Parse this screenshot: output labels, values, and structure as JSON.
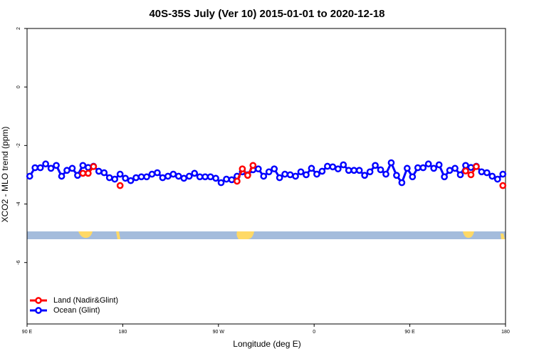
{
  "chart_data": {
    "type": "line",
    "title": "40S-35S July (Ver 10)   2015-01-01 to 2020-12-18",
    "x_label": "Longitude (deg E)",
    "y_label": "XCO2 - MLO trend (ppm)",
    "xlim": [
      90,
      540
    ],
    "ylim": [
      -8.1,
      2
    ],
    "xticks": [
      {
        "value": 90,
        "label": "90 E"
      },
      {
        "value": 180,
        "label": "180"
      },
      {
        "value": 270,
        "label": "90 W"
      },
      {
        "value": 360,
        "label": "0"
      },
      {
        "value": 450,
        "label": "90 E"
      },
      {
        "value": 540,
        "label": "180"
      }
    ],
    "yticks": [
      2,
      0,
      -2,
      -4,
      -6
    ],
    "legend": "bottom-left",
    "series": [
      {
        "name": "Land (Nadir&Glint)",
        "color": "#ff0000",
        "x": [
          142.5,
          147.5,
          152.5,
          177.5,
          287.5,
          292.5,
          297.5,
          302.5,
          502.5,
          507.5,
          512.5,
          537.5
        ],
        "values": [
          -2.95,
          -2.95,
          -2.72,
          -3.37,
          -3.22,
          -2.8,
          -3.02,
          -2.68,
          -2.87,
          -3.0,
          -2.72,
          -3.37
        ]
      },
      {
        "name": "Ocean (Glint)",
        "color": "#0000ff",
        "x": [
          92.5,
          97.5,
          102.5,
          107.5,
          112.5,
          117.5,
          122.5,
          127.5,
          132.5,
          137.5,
          142.5,
          147.5,
          152.5,
          157.5,
          162.5,
          167.5,
          172.5,
          177.5,
          182.5,
          187.5,
          192.5,
          197.5,
          202.5,
          207.5,
          212.5,
          217.5,
          222.5,
          227.5,
          232.5,
          237.5,
          242.5,
          247.5,
          252.5,
          257.5,
          262.5,
          267.5,
          272.5,
          277.5,
          282.5,
          287.5,
          292.5,
          297.5,
          302.5,
          307.5,
          312.5,
          317.5,
          322.5,
          327.5,
          332.5,
          337.5,
          342.5,
          347.5,
          352.5,
          357.5,
          362.5,
          367.5,
          372.5,
          377.5,
          382.5,
          387.5,
          392.5,
          397.5,
          402.5,
          407.5,
          412.5,
          417.5,
          422.5,
          427.5,
          432.5,
          437.5,
          442.5,
          447.5,
          452.5,
          457.5,
          462.5,
          467.5,
          472.5,
          477.5,
          482.5,
          487.5,
          492.5,
          497.5,
          502.5,
          507.5,
          512.5,
          517.5,
          522.5,
          527.5,
          532.5,
          537.5
        ],
        "values": [
          -3.05,
          -2.76,
          -2.76,
          -2.63,
          -2.78,
          -2.68,
          -3.05,
          -2.85,
          -2.78,
          -3.02,
          -2.68,
          -2.75,
          -2.71,
          -2.88,
          -2.93,
          -3.1,
          -3.15,
          -2.98,
          -3.12,
          -3.2,
          -3.1,
          -3.07,
          -3.07,
          -2.98,
          -2.93,
          -3.1,
          -3.05,
          -2.98,
          -3.05,
          -3.12,
          -3.05,
          -2.95,
          -3.07,
          -3.07,
          -3.07,
          -3.12,
          -3.27,
          -3.15,
          -3.17,
          -3.05,
          -2.9,
          -3.0,
          -2.83,
          -2.8,
          -3.05,
          -2.9,
          -2.8,
          -3.1,
          -2.98,
          -3.0,
          -3.05,
          -2.9,
          -3.0,
          -2.78,
          -2.98,
          -2.88,
          -2.71,
          -2.73,
          -2.8,
          -2.66,
          -2.85,
          -2.85,
          -2.85,
          -3.02,
          -2.9,
          -2.68,
          -2.83,
          -2.98,
          -2.59,
          -3.02,
          -3.27,
          -2.78,
          -3.07,
          -2.76,
          -2.76,
          -2.63,
          -2.78,
          -2.66,
          -3.07,
          -2.85,
          -2.78,
          -3.0,
          -2.68,
          -2.75,
          -2.71,
          -2.9,
          -2.93,
          -3.05,
          -3.15,
          -2.98
        ]
      }
    ]
  }
}
